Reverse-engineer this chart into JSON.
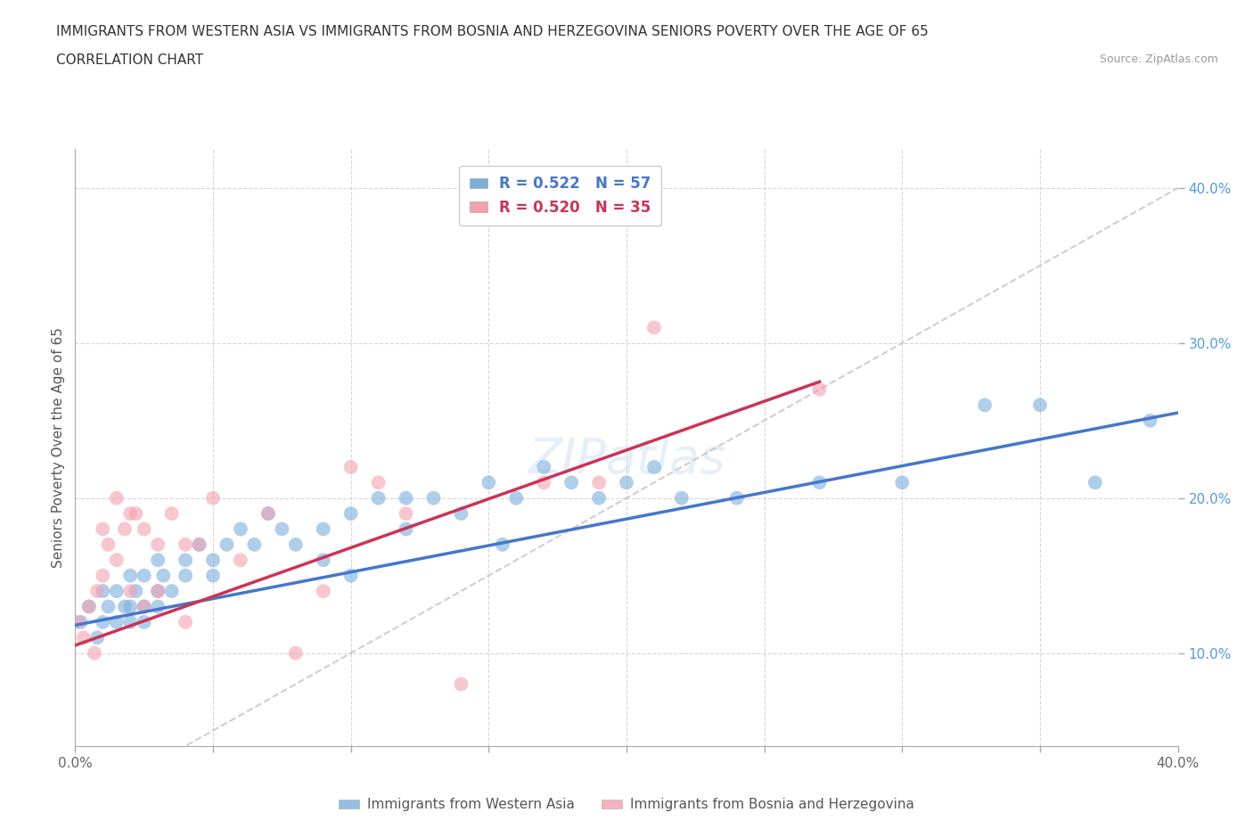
{
  "title_line1": "IMMIGRANTS FROM WESTERN ASIA VS IMMIGRANTS FROM BOSNIA AND HERZEGOVINA SENIORS POVERTY OVER THE AGE OF 65",
  "title_line2": "CORRELATION CHART",
  "source": "Source: ZipAtlas.com",
  "ylabel": "Seniors Poverty Over the Age of 65",
  "xmin": 0.0,
  "xmax": 0.4,
  "ymin": 0.04,
  "ymax": 0.425,
  "xticks": [
    0.0,
    0.05,
    0.1,
    0.15,
    0.2,
    0.25,
    0.3,
    0.35,
    0.4
  ],
  "yticks": [
    0.1,
    0.2,
    0.3,
    0.4
  ],
  "grid_color": "#cccccc",
  "blue_color": "#7aaedd",
  "pink_color": "#f4a0b0",
  "blue_line_color": "#4477cc",
  "pink_line_color": "#cc3355",
  "blue_label": "Immigrants from Western Asia",
  "pink_label": "Immigrants from Bosnia and Herzegovina",
  "R_blue": 0.522,
  "N_blue": 57,
  "R_pink": 0.52,
  "N_pink": 35,
  "blue_scatter_x": [
    0.002,
    0.005,
    0.008,
    0.01,
    0.01,
    0.012,
    0.015,
    0.015,
    0.018,
    0.02,
    0.02,
    0.02,
    0.022,
    0.025,
    0.025,
    0.025,
    0.03,
    0.03,
    0.03,
    0.032,
    0.035,
    0.04,
    0.04,
    0.045,
    0.05,
    0.05,
    0.055,
    0.06,
    0.065,
    0.07,
    0.075,
    0.08,
    0.09,
    0.09,
    0.1,
    0.1,
    0.11,
    0.12,
    0.12,
    0.13,
    0.14,
    0.15,
    0.155,
    0.16,
    0.17,
    0.18,
    0.19,
    0.2,
    0.21,
    0.22,
    0.24,
    0.27,
    0.3,
    0.33,
    0.35,
    0.37,
    0.39
  ],
  "blue_scatter_y": [
    0.12,
    0.13,
    0.11,
    0.14,
    0.12,
    0.13,
    0.14,
    0.12,
    0.13,
    0.15,
    0.13,
    0.12,
    0.14,
    0.15,
    0.13,
    0.12,
    0.14,
    0.13,
    0.16,
    0.15,
    0.14,
    0.16,
    0.15,
    0.17,
    0.16,
    0.15,
    0.17,
    0.18,
    0.17,
    0.19,
    0.18,
    0.17,
    0.18,
    0.16,
    0.19,
    0.15,
    0.2,
    0.18,
    0.2,
    0.2,
    0.19,
    0.21,
    0.17,
    0.2,
    0.22,
    0.21,
    0.2,
    0.21,
    0.22,
    0.2,
    0.2,
    0.21,
    0.21,
    0.26,
    0.26,
    0.21,
    0.25
  ],
  "pink_scatter_x": [
    0.001,
    0.003,
    0.005,
    0.007,
    0.008,
    0.01,
    0.01,
    0.012,
    0.015,
    0.015,
    0.018,
    0.02,
    0.02,
    0.022,
    0.025,
    0.025,
    0.03,
    0.03,
    0.035,
    0.04,
    0.04,
    0.045,
    0.05,
    0.06,
    0.07,
    0.08,
    0.09,
    0.1,
    0.11,
    0.12,
    0.14,
    0.17,
    0.19,
    0.21,
    0.27
  ],
  "pink_scatter_y": [
    0.12,
    0.11,
    0.13,
    0.1,
    0.14,
    0.18,
    0.15,
    0.17,
    0.2,
    0.16,
    0.18,
    0.19,
    0.14,
    0.19,
    0.18,
    0.13,
    0.17,
    0.14,
    0.19,
    0.17,
    0.12,
    0.17,
    0.2,
    0.16,
    0.19,
    0.1,
    0.14,
    0.22,
    0.21,
    0.19,
    0.08,
    0.21,
    0.21,
    0.31,
    0.27
  ],
  "blue_line_x0": 0.0,
  "blue_line_x1": 0.4,
  "blue_line_y0": 0.118,
  "blue_line_y1": 0.255,
  "pink_line_x0": 0.0,
  "pink_line_x1": 0.27,
  "pink_line_y0": 0.105,
  "pink_line_y1": 0.275,
  "diag_color": "#bbbbbb"
}
